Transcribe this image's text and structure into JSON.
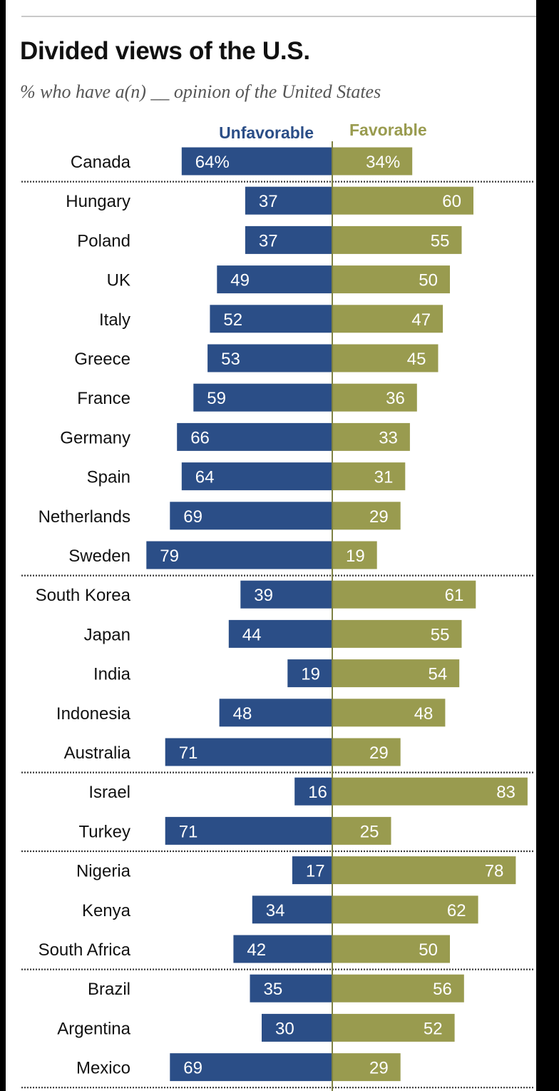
{
  "title": "Divided views of the U.S.",
  "subtitle": "% who have a(n) __ opinion of the United States",
  "colors": {
    "unfavorable": "#2b4e87",
    "favorable": "#999b4f",
    "divider": "#7e8244"
  },
  "chart_data": {
    "type": "bar",
    "orientation": "diverging-horizontal",
    "title": "Divided views of the U.S.",
    "subtitle": "% who have a(n) __ opinion of the United States",
    "legend": [
      "Unfavorable",
      "Favorable"
    ],
    "categories": [
      "Canada",
      "Hungary",
      "Poland",
      "UK",
      "Italy",
      "Greece",
      "France",
      "Germany",
      "Spain",
      "Netherlands",
      "Sweden",
      "South Korea",
      "Japan",
      "India",
      "Indonesia",
      "Australia",
      "Israel",
      "Turkey",
      "Nigeria",
      "Kenya",
      "South Africa",
      "Brazil",
      "Argentina",
      "Mexico"
    ],
    "series": [
      {
        "name": "Unfavorable",
        "values": [
          64,
          37,
          37,
          49,
          52,
          53,
          59,
          66,
          64,
          69,
          79,
          39,
          44,
          19,
          48,
          71,
          16,
          71,
          17,
          34,
          42,
          35,
          30,
          69
        ]
      },
      {
        "name": "Favorable",
        "values": [
          34,
          60,
          55,
          50,
          47,
          45,
          36,
          33,
          31,
          29,
          19,
          61,
          55,
          54,
          48,
          29,
          83,
          25,
          78,
          62,
          50,
          56,
          52,
          29
        ]
      }
    ],
    "value_labels": {
      "Unfavorable": [
        "64%",
        "37",
        "37",
        "49",
        "52",
        "53",
        "59",
        "66",
        "64",
        "69",
        "79",
        "39",
        "44",
        "19",
        "48",
        "71",
        "16",
        "71",
        "17",
        "34",
        "42",
        "35",
        "30",
        "69"
      ],
      "Favorable": [
        "34%",
        "60",
        "55",
        "50",
        "47",
        "45",
        "36",
        "33",
        "31",
        "29",
        "19",
        "61",
        "55",
        "54",
        "48",
        "29",
        "83",
        "25",
        "78",
        "62",
        "50",
        "56",
        "52",
        "29"
      ]
    },
    "group_ends": [
      0,
      10,
      15,
      17,
      20,
      23
    ],
    "xlim": [
      -83,
      83
    ]
  }
}
